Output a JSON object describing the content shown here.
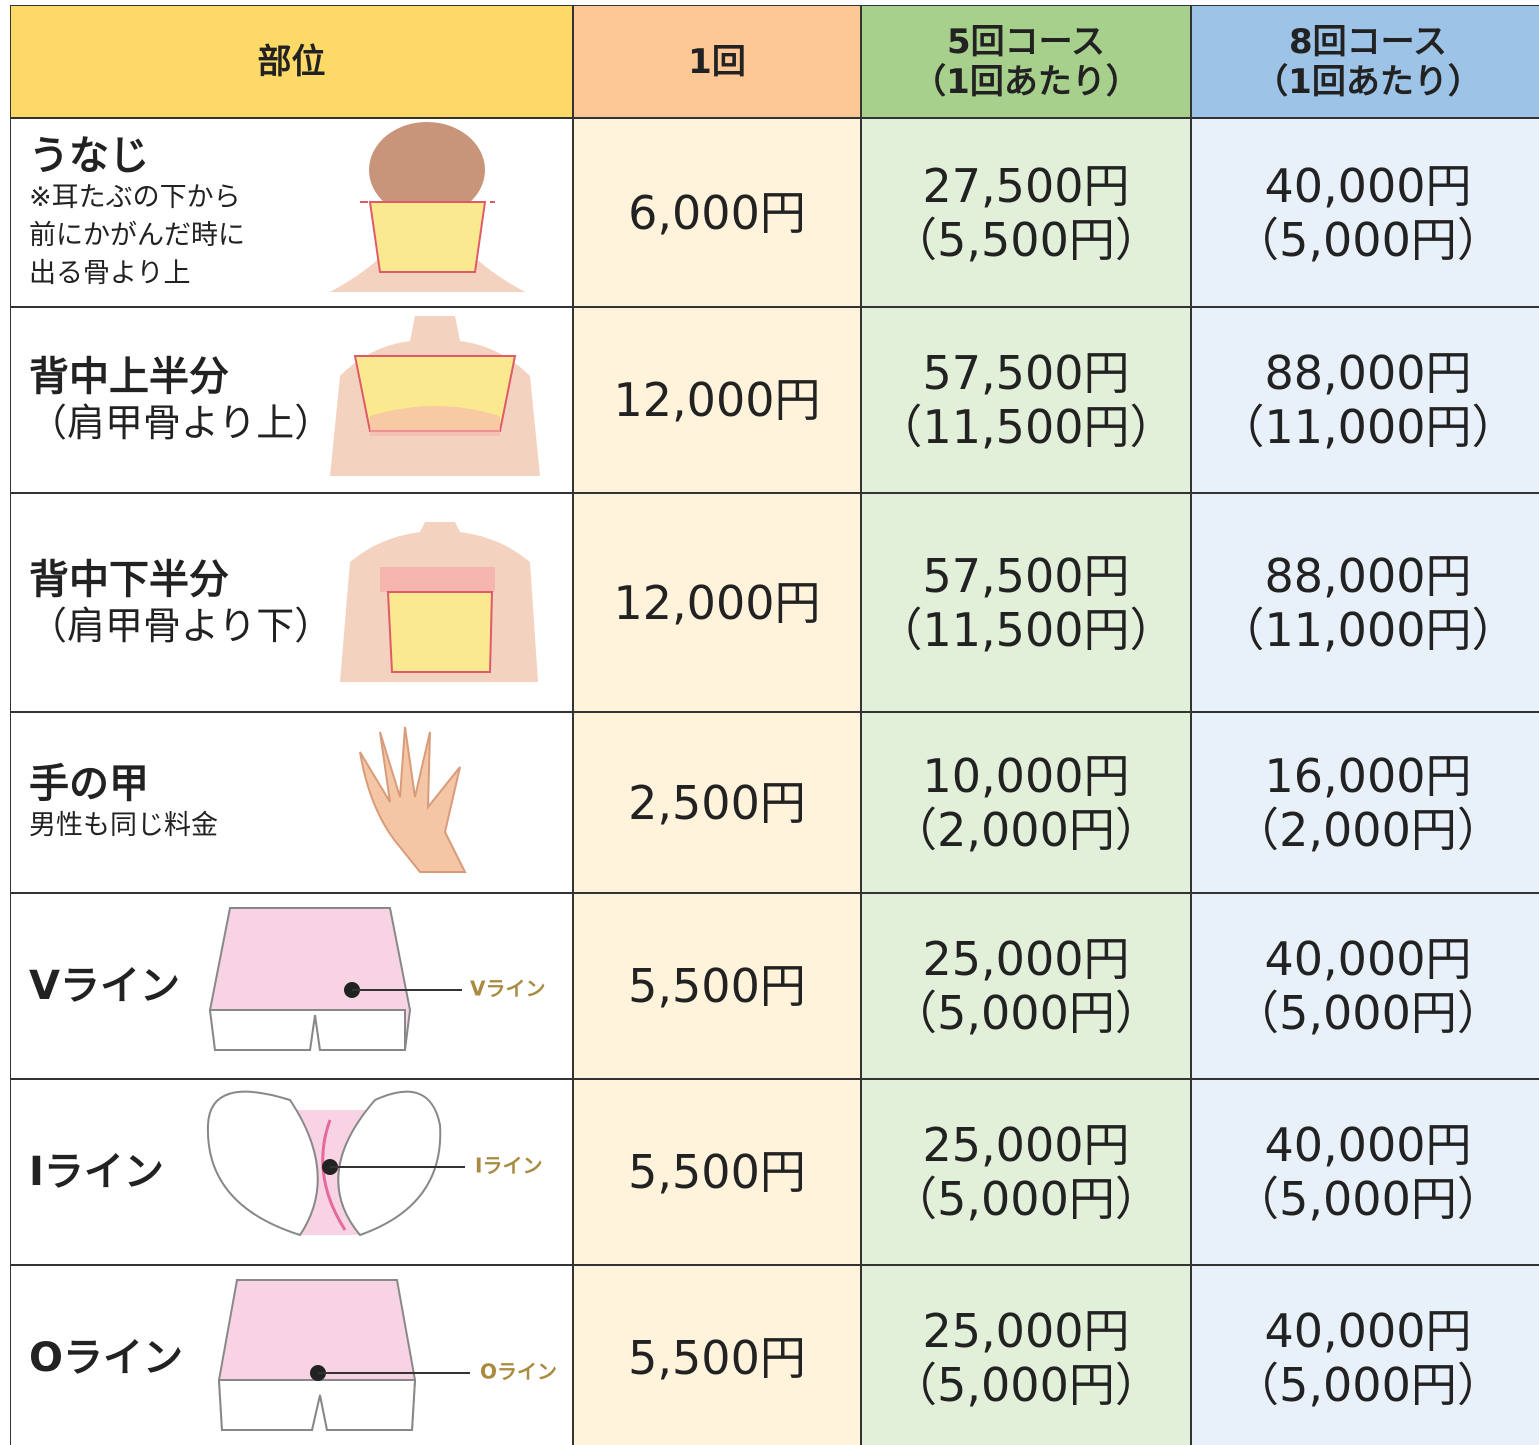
{
  "table": {
    "header": [
      {
        "lines": [
          "部位"
        ]
      },
      {
        "lines": [
          "1回"
        ]
      },
      {
        "lines": [
          "5回コース",
          "（1回あたり）"
        ]
      },
      {
        "lines": [
          "8回コース",
          "（1回あたり）"
        ]
      }
    ],
    "rows": [
      {
        "part": "うなじ",
        "notes": [
          "※耳たぶの下から",
          "前にかがんだ時に",
          "出る骨より上"
        ],
        "single": "6,000円",
        "course5": [
          "27,500円",
          "（5,500円）"
        ],
        "course8": [
          "40,000円",
          "（5,000円）"
        ]
      },
      {
        "part": "背中上半分",
        "notes": [
          "（肩甲骨より上）"
        ],
        "single": "12,000円",
        "course5": [
          "57,500円",
          "（11,500円）"
        ],
        "course8": [
          "88,000円",
          "（11,000円）"
        ]
      },
      {
        "part": "背中下半分",
        "notes": [
          "（肩甲骨より下）"
        ],
        "single": "12,000円",
        "course5": [
          "57,500円",
          "（11,500円）"
        ],
        "course8": [
          "88,000円",
          "（11,000円）"
        ]
      },
      {
        "part": "手の甲",
        "notes": [
          "男性も同じ料金"
        ],
        "single": "2,500円",
        "course5": [
          "10,000円",
          "（2,000円）"
        ],
        "course8": [
          "16,000円",
          "（2,000円）"
        ]
      },
      {
        "part": "Vライン",
        "illustration_label": "Vライン",
        "single": "5,500円",
        "course5": [
          "25,000円",
          "（5,000円）"
        ],
        "course8": [
          "40,000円",
          "（5,000円）"
        ]
      },
      {
        "part": "Iライン",
        "illustration_label": "Iライン",
        "single": "5,500円",
        "course5": [
          "25,000円",
          "（5,000円）"
        ],
        "course8": [
          "40,000円",
          "（5,000円）"
        ]
      },
      {
        "part": "Oライン",
        "illustration_label": "Oライン",
        "single": "5,500円",
        "course5": [
          "25,000円",
          "（5,000円）"
        ],
        "course8": [
          "40,000円",
          "（5,000円）"
        ]
      }
    ]
  }
}
